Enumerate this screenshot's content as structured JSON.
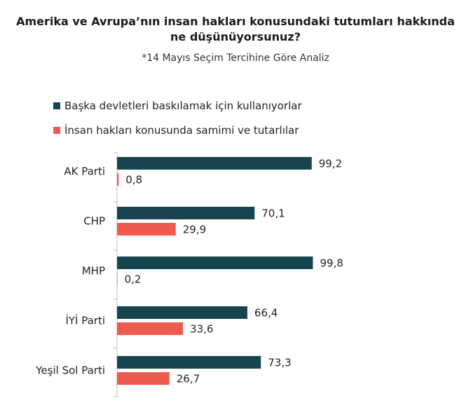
{
  "chart_data": {
    "type": "bar",
    "orientation": "horizontal",
    "title_lines": [
      "Amerika ve Avrupa’nın insan hakları konusundaki tutumları hakkında",
      "ne düşünüyorsunuz?"
    ],
    "subtitle": "*14 Mayıs Seçim Tercihine Göre Analiz",
    "categories": [
      "AK Parti",
      "CHP",
      "MHP",
      "İYİ Parti",
      "Yeşil Sol Parti"
    ],
    "series": [
      {
        "name": "Başka devletleri baskılamak için kullanıyorlar",
        "color": "#17444f",
        "values": [
          99.2,
          70.1,
          99.8,
          66.4,
          73.3
        ],
        "value_labels": [
          "99,2",
          "70,1",
          "99,8",
          "66,4",
          "73,3"
        ]
      },
      {
        "name": "İnsan hakları konusunda samimi ve tutarlılar",
        "color": "#ef5a4f",
        "values": [
          0.8,
          29.9,
          0.2,
          33.6,
          26.7
        ],
        "value_labels": [
          "0,8",
          "29,9",
          "0,2",
          "33,6",
          "26,7"
        ]
      }
    ],
    "xlim": [
      0,
      100
    ],
    "grid": false,
    "legend_position": "top-left",
    "axis_color": "#bfbfbf"
  }
}
